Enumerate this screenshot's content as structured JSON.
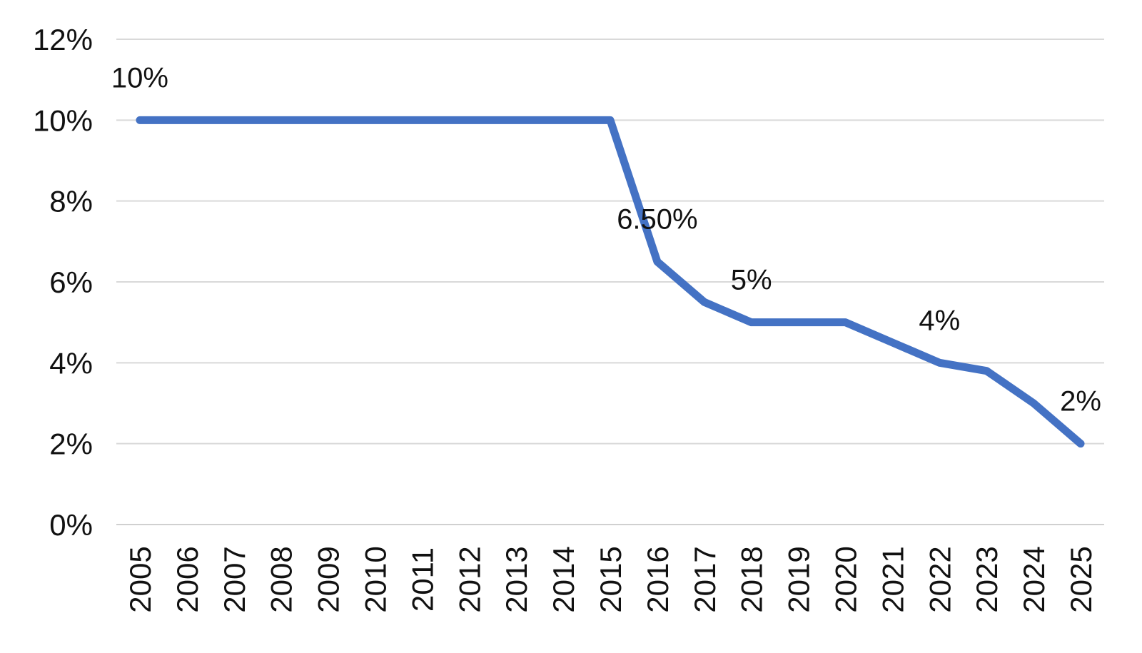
{
  "chart_data": {
    "type": "line",
    "title": "",
    "xlabel": "",
    "ylabel": "",
    "categories": [
      "2005",
      "2006",
      "2007",
      "2008",
      "2009",
      "2010",
      "2011",
      "2012",
      "2013",
      "2014",
      "2015",
      "2016",
      "2017",
      "2018",
      "2019",
      "2020",
      "2021",
      "2022",
      "2023",
      "2024",
      "2025"
    ],
    "series": [
      {
        "name": "rate",
        "values": [
          10,
          10,
          10,
          10,
          10,
          10,
          10,
          10,
          10,
          10,
          10,
          6.5,
          5.5,
          5,
          5,
          5,
          4.5,
          4,
          3.8,
          3,
          2
        ]
      }
    ],
    "ylim": [
      0,
      12
    ],
    "y_tick_values": [
      0,
      2,
      4,
      6,
      8,
      10,
      12
    ],
    "y_tick_labels": [
      "0%",
      "2%",
      "4%",
      "6%",
      "8%",
      "10%",
      "12%"
    ],
    "grid": true,
    "legend_position": "none",
    "x_label_rotation": -90,
    "annotations": [
      {
        "category": "2005",
        "value": 10,
        "text": "10%"
      },
      {
        "category": "2016",
        "value": 6.5,
        "text": "6.50%"
      },
      {
        "category": "2018",
        "value": 5,
        "text": "5%"
      },
      {
        "category": "2022",
        "value": 4,
        "text": "4%"
      },
      {
        "category": "2025",
        "value": 2,
        "text": "2%"
      }
    ],
    "colors": {
      "line": "#4472C4",
      "gridline": "#D9D9D9",
      "axis_line": "#D0D0D0",
      "text": "#111111",
      "background": "#FFFFFF"
    }
  }
}
